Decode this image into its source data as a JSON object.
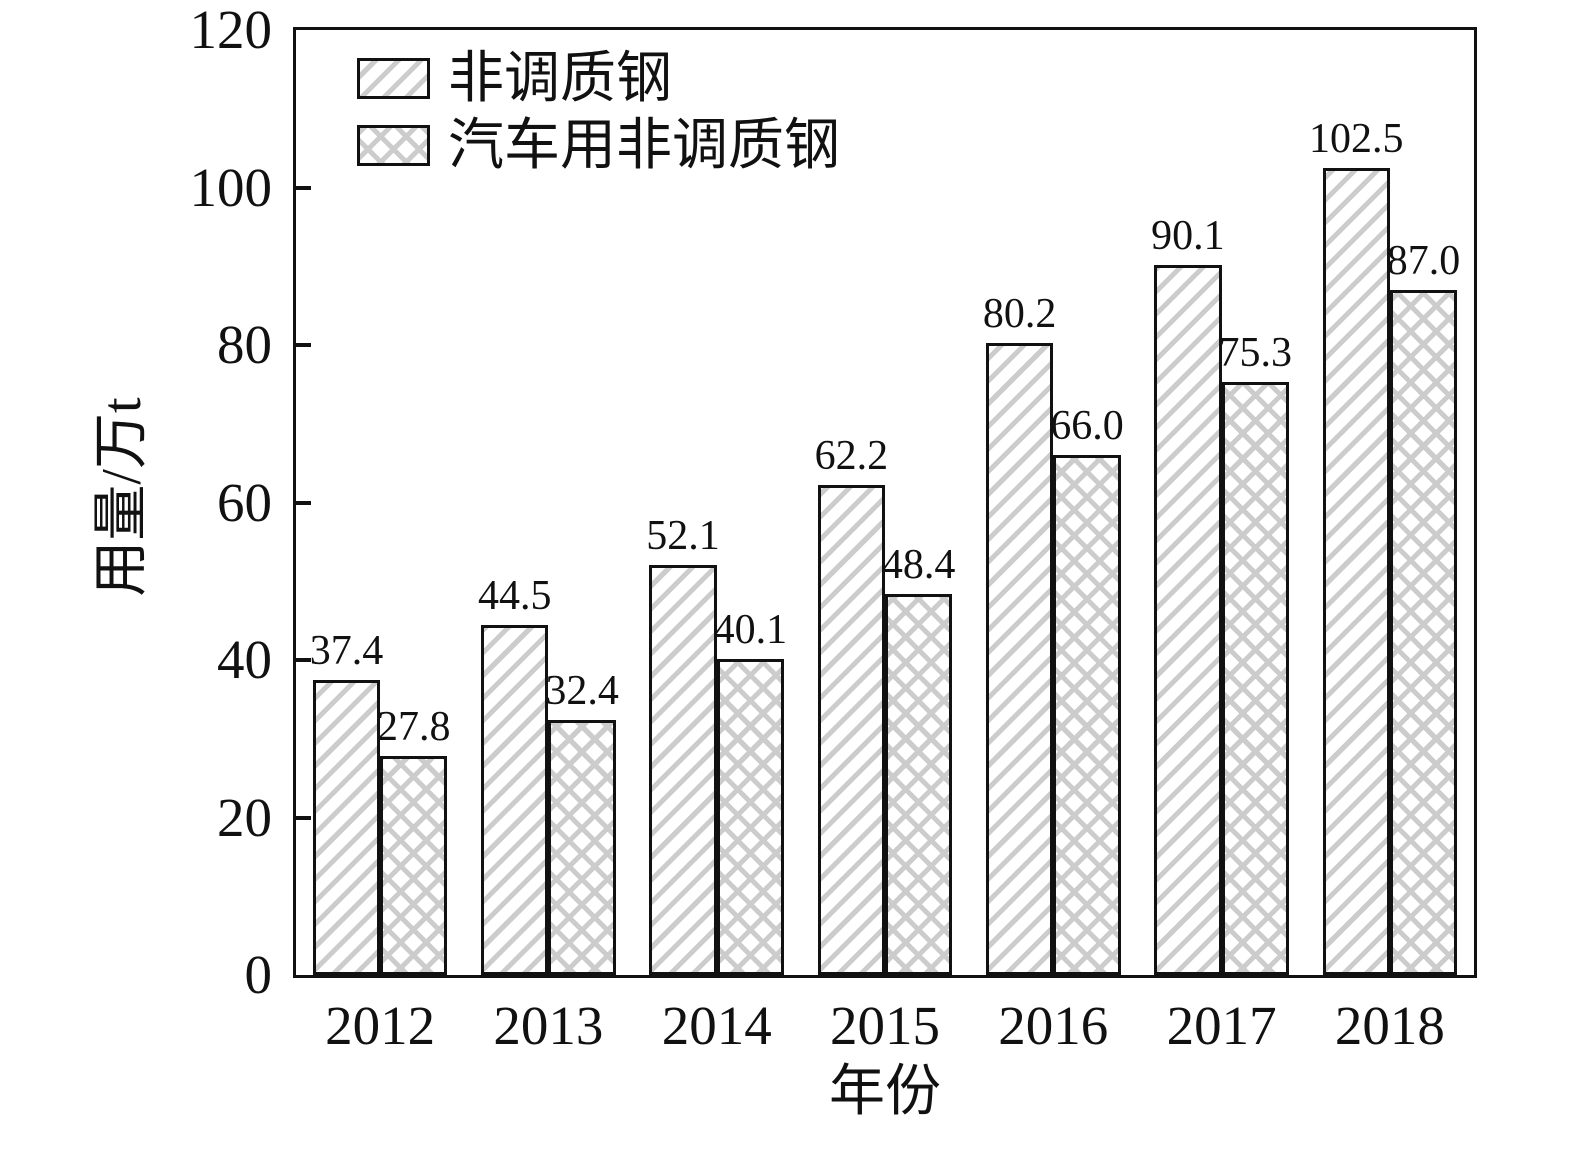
{
  "chart_data": {
    "type": "bar",
    "title": "",
    "categories": [
      "2012",
      "2013",
      "2014",
      "2015",
      "2016",
      "2017",
      "2018"
    ],
    "series": [
      {
        "name": "非调质钢",
        "pattern": "diagonal-hatch",
        "values": [
          37.4,
          44.5,
          52.1,
          62.2,
          80.2,
          90.1,
          102.5
        ]
      },
      {
        "name": "汽车用非调质钢",
        "pattern": "cross-hatch",
        "values": [
          27.8,
          32.4,
          40.1,
          48.4,
          66.0,
          75.3,
          87.0
        ]
      }
    ],
    "xlabel": "年份",
    "ylabel": "用量/万t",
    "ylim": [
      0,
      120
    ],
    "yticks": [
      0,
      20,
      40,
      60,
      80,
      100,
      120
    ],
    "legend_position": "top-left",
    "grid": false,
    "value_labels": true,
    "value_label_decimals": 1,
    "colors": {
      "stroke": "#111111",
      "text": "#111111",
      "hatch_line": "#cccccc",
      "bar_fill": "#ffffff",
      "background": "#ffffff"
    }
  }
}
